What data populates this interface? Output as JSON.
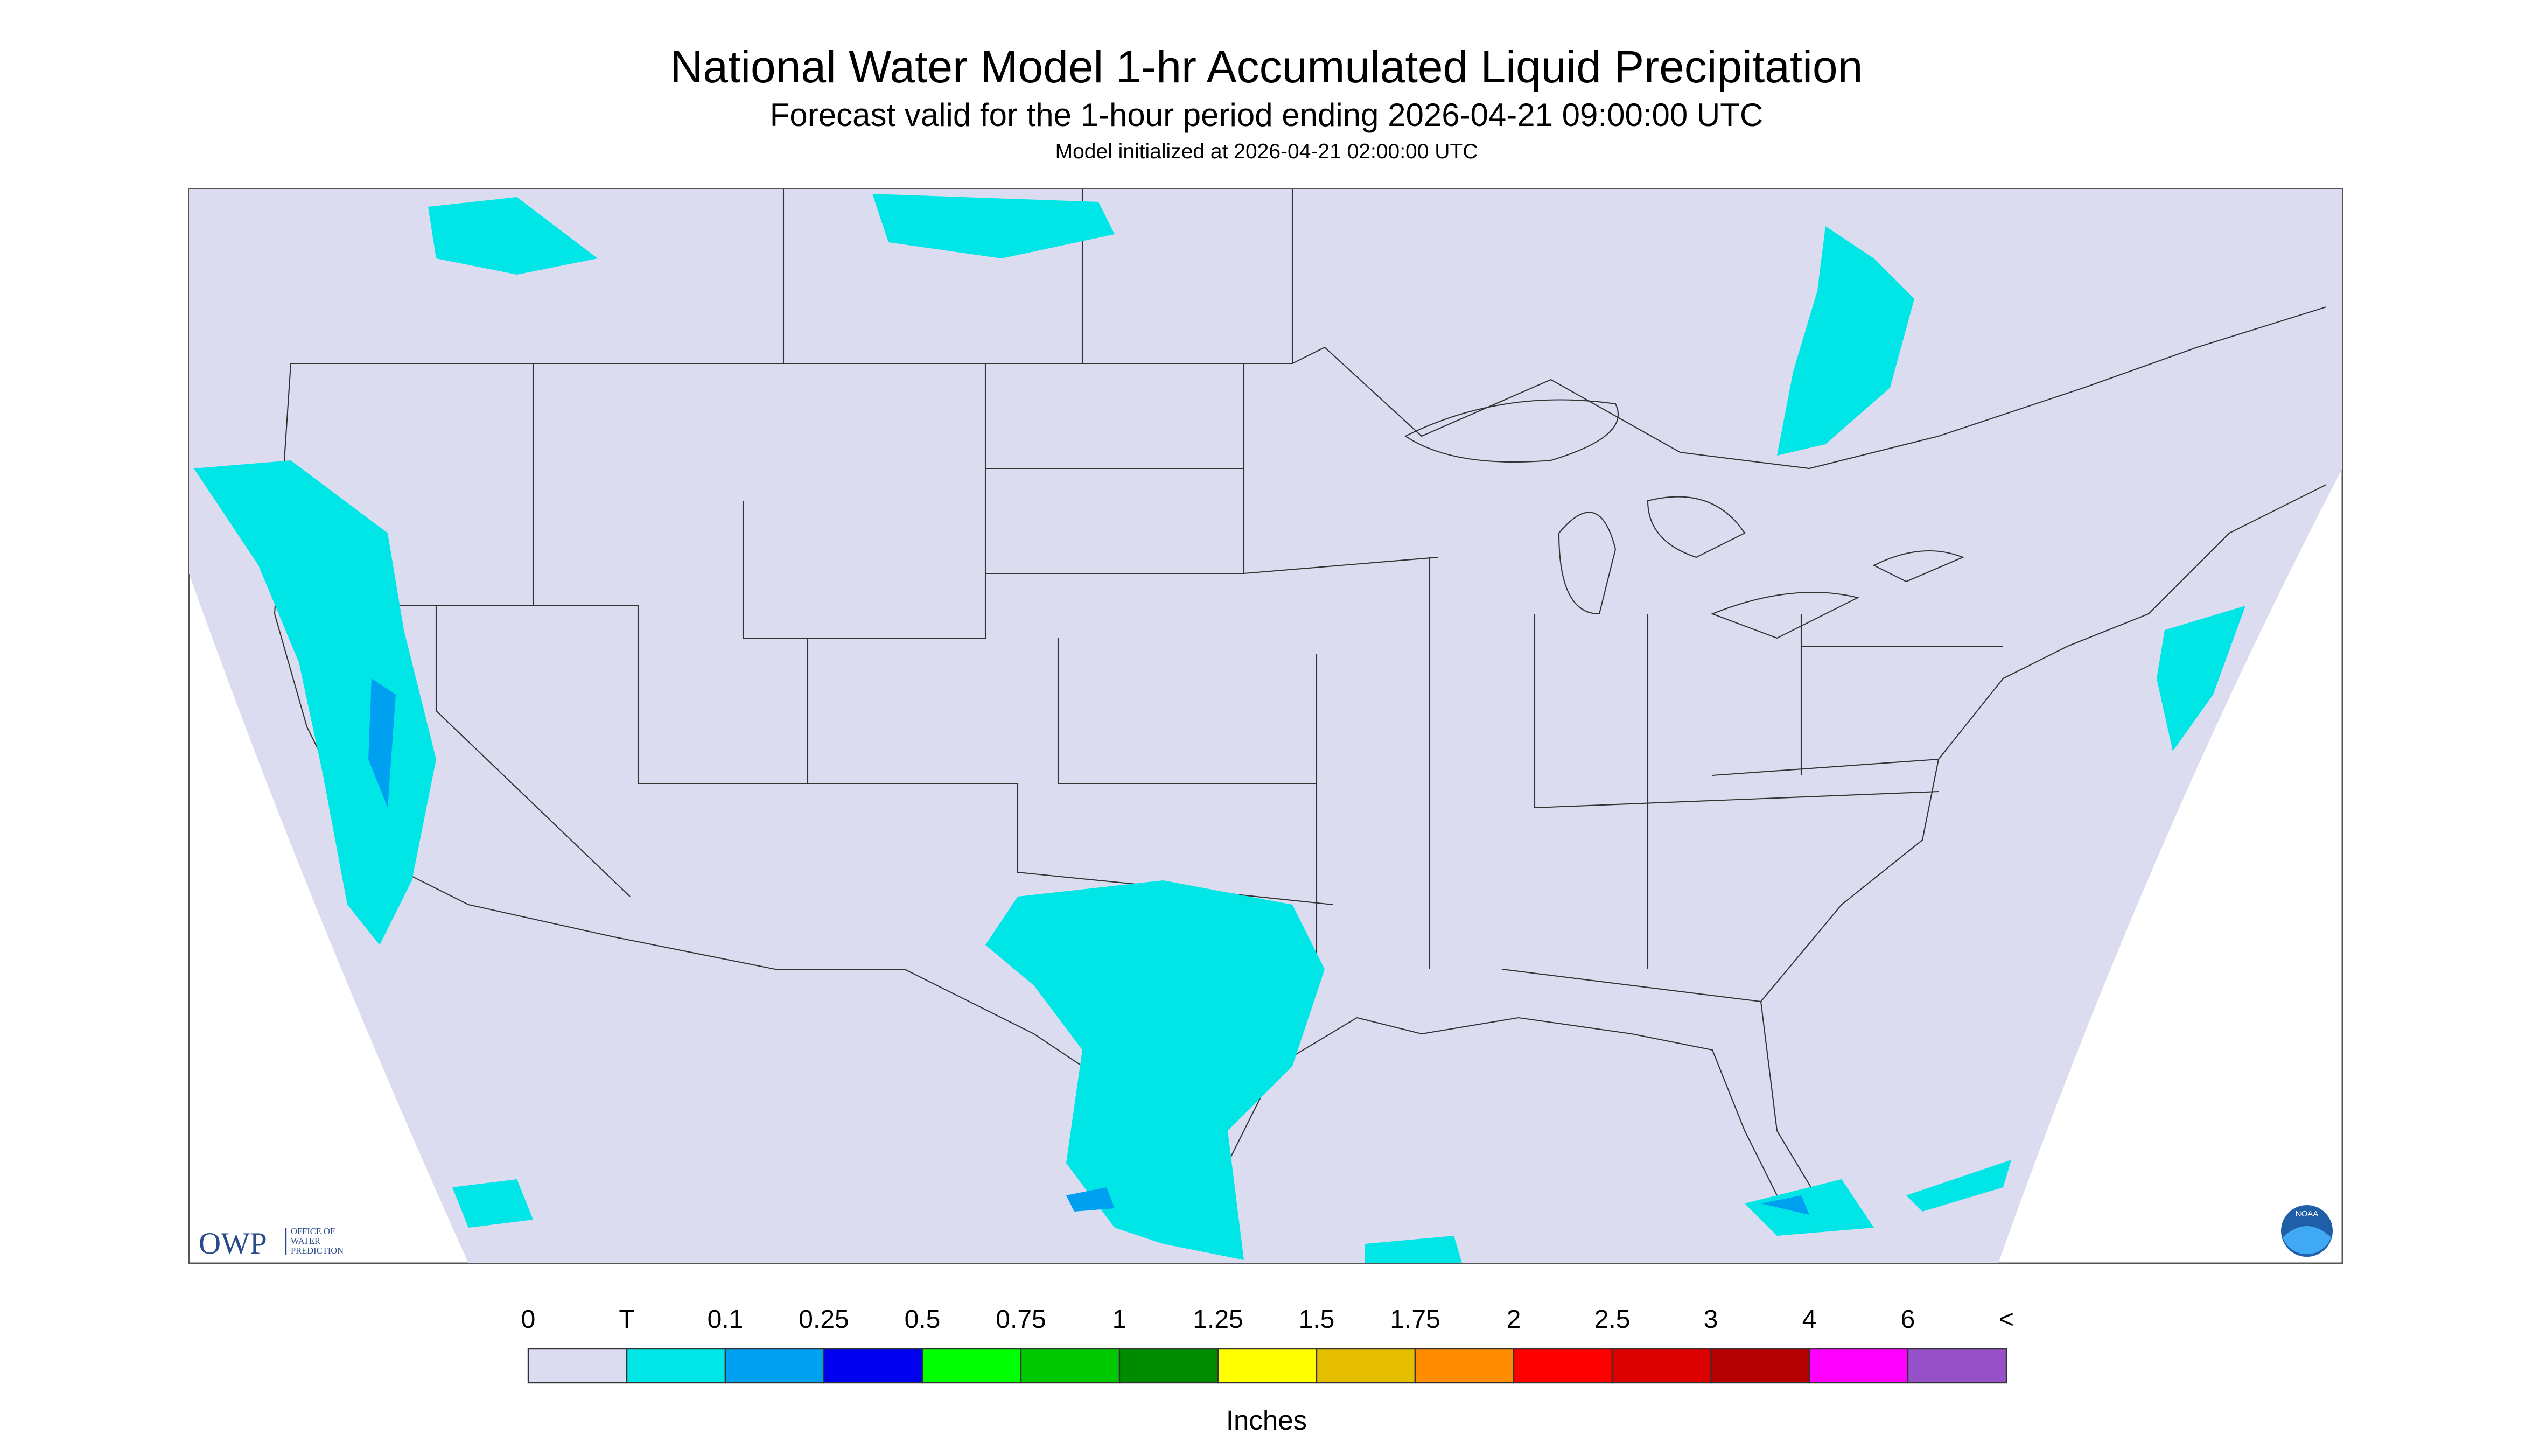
{
  "header": {
    "title": "National Water Model 1-hr Accumulated Liquid Precipitation",
    "subtitle": "Forecast valid for the 1-hour period ending 2026-04-21 09:00:00 UTC",
    "note": "Model initialized at 2026-04-21 02:00:00 UTC"
  },
  "logo": {
    "abbr": "OWP",
    "line1": "OFFICE OF",
    "line2": "WATER",
    "line3": "PREDICTION",
    "agency": "NOAA"
  },
  "legend": {
    "labels": [
      "0",
      "T",
      "0.1",
      "0.25",
      "0.5",
      "0.75",
      "1",
      "1.25",
      "1.5",
      "1.75",
      "2",
      "2.5",
      "3",
      "4",
      "6",
      "<"
    ],
    "colors": [
      "#dcdcf0",
      "#00e6e6",
      "#00a0f0",
      "#0000f0",
      "#00ff00",
      "#00c800",
      "#008c00",
      "#ffff00",
      "#e6be00",
      "#ff8c00",
      "#ff0000",
      "#dc0000",
      "#b40000",
      "#ff00ff",
      "#9650c8"
    ],
    "unit": "Inches"
  }
}
